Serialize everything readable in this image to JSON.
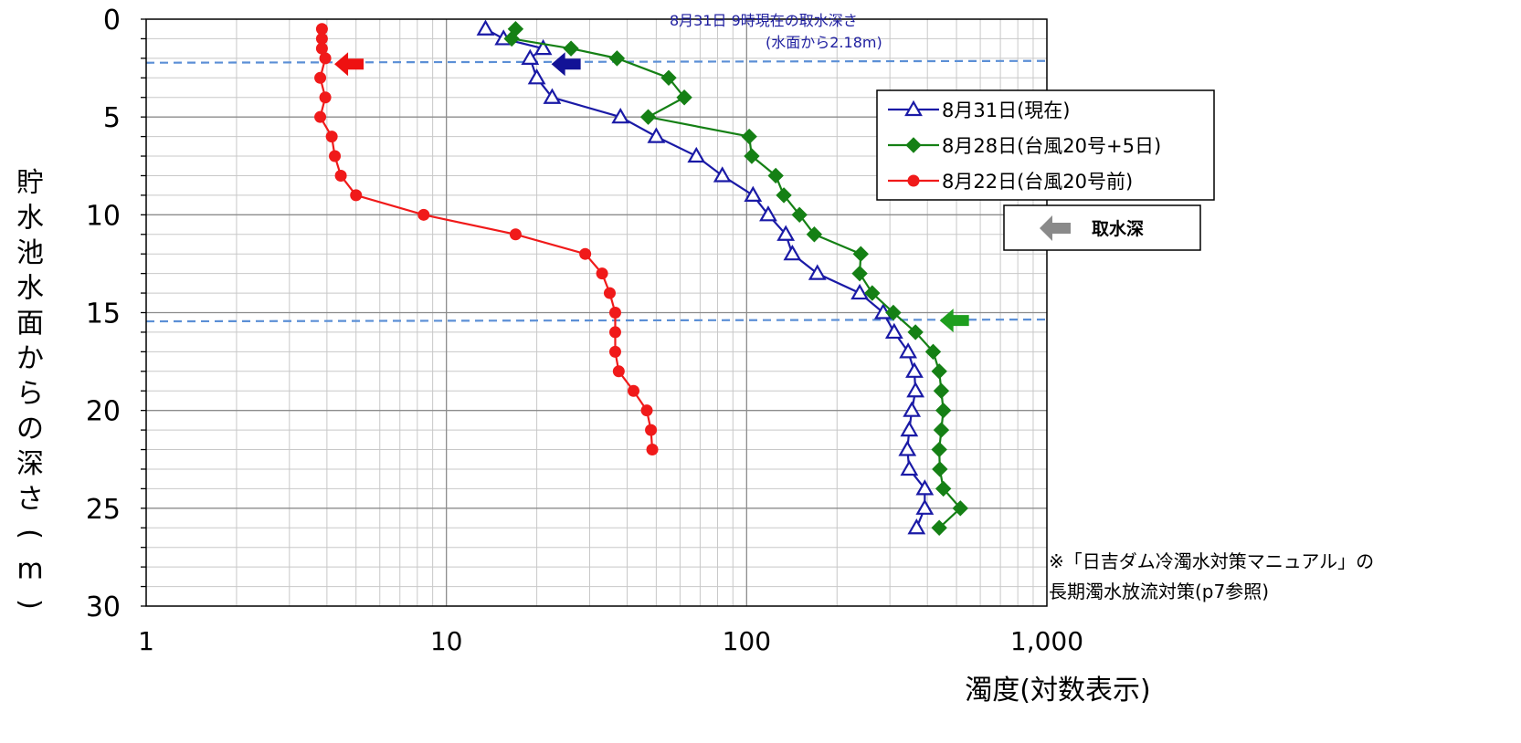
{
  "chart_data": {
    "type": "line",
    "title": "",
    "xlabel": "濁度(対数表示)",
    "ylabel": "貯水池水面からの深さ(m)",
    "x_scale": "log",
    "xlim": [
      1,
      1000
    ],
    "ylim": [
      0,
      30
    ],
    "y_inverted": true,
    "grid": true,
    "x_tick_labels": [
      "1",
      "10",
      "100",
      "1,000"
    ],
    "x_tick_values": [
      1,
      10,
      100,
      1000
    ],
    "y_tick_labels": [
      "0",
      "5",
      "10",
      "15",
      "20",
      "25",
      "30"
    ],
    "y_tick_values": [
      0,
      5,
      10,
      15,
      20,
      25,
      30
    ],
    "legend_position": "top-right",
    "series": [
      {
        "name": "8月31日(現在)",
        "color": "#1a1aa6",
        "marker": "triangle-open",
        "points": [
          [
            13.5,
            0.5
          ],
          [
            15.5,
            1.0
          ],
          [
            21,
            1.5
          ],
          [
            19,
            2.0
          ],
          [
            20,
            3.0
          ],
          [
            22.5,
            4.0
          ],
          [
            38,
            5.0
          ],
          [
            50,
            6.0
          ],
          [
            68,
            7.0
          ],
          [
            83,
            8.0
          ],
          [
            105,
            9.0
          ],
          [
            118,
            10.0
          ],
          [
            135,
            11.0
          ],
          [
            142,
            12.0
          ],
          [
            172,
            13.0
          ],
          [
            238,
            14.0
          ],
          [
            285,
            15.0
          ],
          [
            310,
            16.0
          ],
          [
            345,
            17.0
          ],
          [
            362,
            18.0
          ],
          [
            365,
            19.0
          ],
          [
            355,
            20.0
          ],
          [
            348,
            21.0
          ],
          [
            343,
            22.0
          ],
          [
            348,
            23.0
          ],
          [
            392,
            24.0
          ],
          [
            392,
            25.0
          ],
          [
            368,
            26.0
          ]
        ]
      },
      {
        "name": "8月28日(台風20号+5日)",
        "color": "#158015",
        "marker": "diamond",
        "points": [
          [
            17,
            0.5
          ],
          [
            16.5,
            1.0
          ],
          [
            26,
            1.5
          ],
          [
            37,
            2.0
          ],
          [
            55,
            3.0
          ],
          [
            62,
            4.0
          ],
          [
            47,
            5.0
          ],
          [
            102,
            6.0
          ],
          [
            104,
            7.0
          ],
          [
            125,
            8.0
          ],
          [
            133,
            9.0
          ],
          [
            150,
            10.0
          ],
          [
            168,
            11.0
          ],
          [
            240,
            12.0
          ],
          [
            238,
            13.0
          ],
          [
            262,
            14.0
          ],
          [
            308,
            15.0
          ],
          [
            365,
            16.0
          ],
          [
            418,
            17.0
          ],
          [
            438,
            18.0
          ],
          [
            445,
            19.0
          ],
          [
            452,
            20.0
          ],
          [
            445,
            21.0
          ],
          [
            438,
            22.0
          ],
          [
            440,
            23.0
          ],
          [
            452,
            24.0
          ],
          [
            515,
            25.0
          ],
          [
            438,
            26.0
          ]
        ]
      },
      {
        "name": "8月22日(台風20号前)",
        "color": "#f01a1a",
        "marker": "circle",
        "points": [
          [
            3.85,
            0.5
          ],
          [
            3.85,
            1.0
          ],
          [
            3.85,
            1.5
          ],
          [
            3.95,
            2.0
          ],
          [
            3.8,
            3.0
          ],
          [
            3.95,
            4.0
          ],
          [
            3.8,
            5.0
          ],
          [
            4.15,
            6.0
          ],
          [
            4.25,
            7.0
          ],
          [
            4.45,
            8.0
          ],
          [
            5.0,
            9.0
          ],
          [
            8.4,
            10.0
          ],
          [
            17,
            11.0
          ],
          [
            29,
            12.0
          ],
          [
            33,
            13.0
          ],
          [
            35,
            14.0
          ],
          [
            36.5,
            15.0
          ],
          [
            36.5,
            16.0
          ],
          [
            36.5,
            17.0
          ],
          [
            37.5,
            18.0
          ],
          [
            42,
            19.0
          ],
          [
            46.5,
            20.0
          ],
          [
            48,
            21.0
          ],
          [
            48.5,
            22.0
          ]
        ]
      }
    ],
    "reference_lines": [
      {
        "y": 2.18,
        "color": "#5b8fd6",
        "style": "dashed"
      },
      {
        "y": 15.4,
        "color": "#5b8fd6",
        "style": "dashed"
      }
    ],
    "arrows": [
      {
        "x": 5.3,
        "y": 2.3,
        "color": "#ee1111"
      },
      {
        "x": 28,
        "y": 2.3,
        "color": "#121296"
      },
      {
        "x": 550,
        "y": 15.4,
        "color": "#1e9e1e"
      }
    ],
    "annotations": {
      "intake_line1": "8月31日 9時現在の取水深さ",
      "intake_line2": "(水面から2.18m)",
      "note_line1": "※「日吉ダム冷濁水対策マニュアル」の",
      "note_line2": "長期濁水放流対策(p7参照)",
      "intake_legend": "取水深"
    }
  }
}
